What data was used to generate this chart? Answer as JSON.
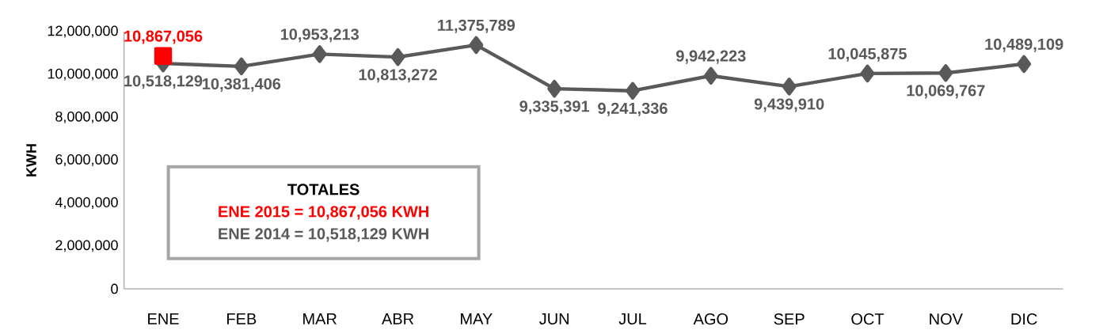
{
  "chart_data": {
    "type": "line",
    "ylabel": "KWH",
    "categories": [
      "ENE",
      "FEB",
      "MAR",
      "ABR",
      "MAY",
      "JUN",
      "JUL",
      "AGO",
      "SEP",
      "OCT",
      "NOV",
      "DIC"
    ],
    "series": [
      {
        "color": "#595959",
        "marker": "diamond",
        "values": [
          10518129,
          10381406,
          10953213,
          10813272,
          11375789,
          9335391,
          9241336,
          9942223,
          9439910,
          10045875,
          10069767,
          10489109
        ],
        "value_labels": [
          "10,518,129",
          "10,381,406",
          "10,953,213",
          "10,813,272",
          "11,375,789",
          "9,335,391",
          "9,241,336",
          "9,942,223",
          "9,439,910",
          "10,045,875",
          "10,069,767",
          "10,489,109"
        ]
      },
      {
        "color": "#ff0000",
        "marker": "square",
        "values": [
          10867056,
          null,
          null,
          null,
          null,
          null,
          null,
          null,
          null,
          null,
          null,
          null
        ],
        "value_labels": [
          "10,867,056",
          null,
          null,
          null,
          null,
          null,
          null,
          null,
          null,
          null,
          null,
          null
        ]
      }
    ],
    "ylim": [
      0,
      12000000
    ],
    "yticks": [
      {
        "value": 0,
        "label": "0"
      },
      {
        "value": 2000000,
        "label": "2,000,000"
      },
      {
        "value": 4000000,
        "label": "4,000,000"
      },
      {
        "value": 6000000,
        "label": "6,000,000"
      },
      {
        "value": 8000000,
        "label": "8,000,000"
      },
      {
        "value": 10000000,
        "label": "10,000,000"
      },
      {
        "value": 12000000,
        "label": "12,000,000"
      }
    ],
    "grid": false,
    "line_style": "solid",
    "annotations": [
      "TOTALES",
      "ENE 2015 = 10,867,056 KWH",
      "ENE 2014 = 10,518,129 KWH"
    ]
  }
}
